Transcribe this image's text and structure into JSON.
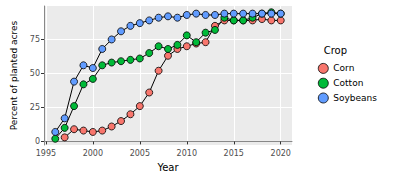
{
  "chart_data": {
    "type": "line",
    "x_label": "Year",
    "y_label": "Percent of planted acres",
    "legend_title": "Crop",
    "legend": "right",
    "grid": true,
    "marker": "circle",
    "x": [
      1996,
      1997,
      1998,
      1999,
      2000,
      2001,
      2002,
      2003,
      2004,
      2005,
      2006,
      2007,
      2008,
      2009,
      2010,
      2011,
      2012,
      2013,
      2014,
      2015,
      2016,
      2017,
      2018,
      2019,
      2020
    ],
    "series": [
      {
        "name": "Corn",
        "color": "#F8766D",
        "values": [
          null,
          3,
          9,
          8,
          7,
          8,
          11,
          15,
          20,
          26,
          36,
          52,
          63,
          68,
          70,
          72,
          73,
          85,
          89,
          89,
          89,
          89,
          90,
          89,
          89
        ]
      },
      {
        "name": "Cotton",
        "color": "#00BA38",
        "values": [
          2,
          10,
          26,
          42,
          46,
          56,
          58,
          59,
          60,
          61,
          65,
          70,
          68,
          71,
          78,
          73,
          80,
          82,
          91,
          89,
          89,
          91,
          94,
          95,
          94
        ]
      },
      {
        "name": "Soybeans",
        "color": "#619CFF",
        "values": [
          7,
          17,
          44,
          56,
          54,
          68,
          75,
          81,
          85,
          87,
          89,
          91,
          92,
          91,
          93,
          94,
          93,
          93,
          94,
          94,
          94,
          94,
          94,
          94,
          94
        ]
      }
    ],
    "xlim": [
      1994.8,
      2021.2
    ],
    "xticks": [
      1995,
      2000,
      2005,
      2010,
      2015,
      2020
    ],
    "ylim": [
      -2.6,
      99.6
    ],
    "yticks": [
      0,
      25,
      50,
      75
    ]
  }
}
